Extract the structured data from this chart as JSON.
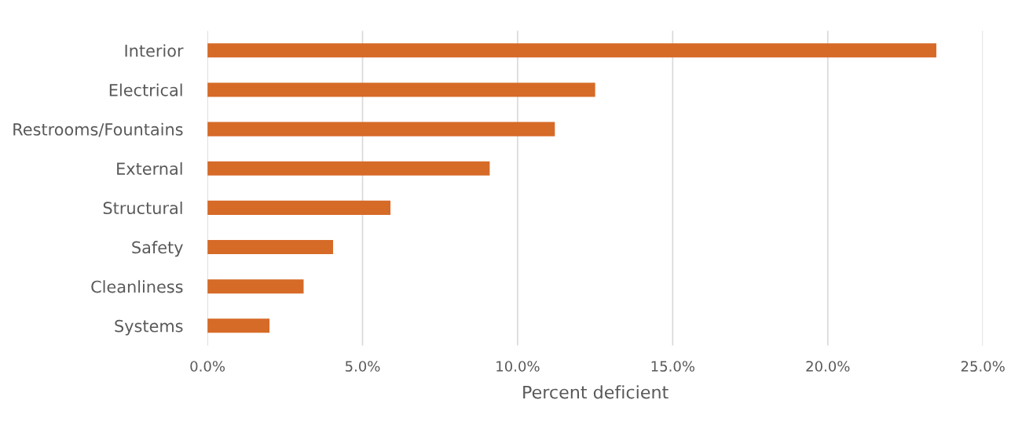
{
  "chart_data": {
    "type": "bar",
    "orientation": "horizontal",
    "xlabel": "Percent deficient",
    "categories": [
      "Interior",
      "Electrical",
      "Restrooms/Fountains",
      "External",
      "Structural",
      "Safety",
      "Cleanliness",
      "Systems"
    ],
    "values": [
      23.5,
      12.5,
      11.2,
      9.1,
      5.9,
      4.05,
      3.1,
      2.0
    ],
    "color": "#d66a27",
    "xlim": [
      0,
      25
    ],
    "xticks": [
      {
        "value": 0,
        "label": "0.0%"
      },
      {
        "value": 5,
        "label": "5.0%"
      },
      {
        "value": 10,
        "label": "10.0%"
      },
      {
        "value": 15,
        "label": "15.0%"
      },
      {
        "value": 20,
        "label": "20.0%"
      },
      {
        "value": 25,
        "label": "25.0%"
      }
    ],
    "grid": "x",
    "legend": false
  }
}
